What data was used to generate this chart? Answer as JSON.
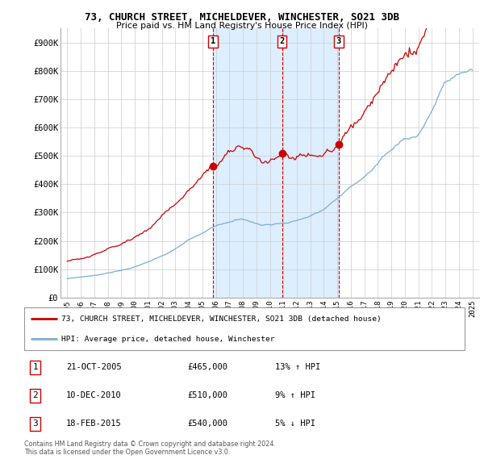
{
  "title": "73, CHURCH STREET, MICHELDEVER, WINCHESTER, SO21 3DB",
  "subtitle": "Price paid vs. HM Land Registry's House Price Index (HPI)",
  "ylabel_ticks": [
    "£0",
    "£100K",
    "£200K",
    "£300K",
    "£400K",
    "£500K",
    "£600K",
    "£700K",
    "£800K",
    "£900K"
  ],
  "ytick_values": [
    0,
    100000,
    200000,
    300000,
    400000,
    500000,
    600000,
    700000,
    800000,
    900000
  ],
  "ylim": [
    0,
    950000
  ],
  "xlim_start": 1994.5,
  "xlim_end": 2025.5,
  "xtick_years": [
    1995,
    1996,
    1997,
    1998,
    1999,
    2000,
    2001,
    2002,
    2003,
    2004,
    2005,
    2006,
    2007,
    2008,
    2009,
    2010,
    2011,
    2012,
    2013,
    2014,
    2015,
    2016,
    2017,
    2018,
    2019,
    2020,
    2021,
    2022,
    2023,
    2024,
    2025
  ],
  "sale_dates": [
    2005.8,
    2010.9,
    2015.1
  ],
  "sale_prices": [
    465000,
    510000,
    540000
  ],
  "sale_labels": [
    "1",
    "2",
    "3"
  ],
  "legend_red": "73, CHURCH STREET, MICHELDEVER, WINCHESTER, SO21 3DB (detached house)",
  "legend_blue": "HPI: Average price, detached house, Winchester",
  "table_rows": [
    [
      "1",
      "21-OCT-2005",
      "£465,000",
      "13% ↑ HPI"
    ],
    [
      "2",
      "10-DEC-2010",
      "£510,000",
      "9% ↑ HPI"
    ],
    [
      "3",
      "18-FEB-2015",
      "£540,000",
      "5% ↓ HPI"
    ]
  ],
  "footnote1": "Contains HM Land Registry data © Crown copyright and database right 2024.",
  "footnote2": "This data is licensed under the Open Government Licence v3.0.",
  "red_color": "#cc0000",
  "blue_color": "#7aadd4",
  "shade_color": "#ddeeff",
  "grid_color": "#cccccc",
  "background_color": "#ffffff"
}
